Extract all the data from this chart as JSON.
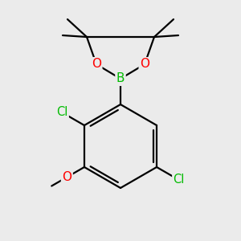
{
  "background_color": "#ebebeb",
  "bond_color": "#000000",
  "atom_colors": {
    "B": "#00bb00",
    "O": "#ff0000",
    "Cl": "#00bb00",
    "C": "#000000"
  },
  "figsize": [
    3.0,
    3.0
  ],
  "dpi": 100
}
